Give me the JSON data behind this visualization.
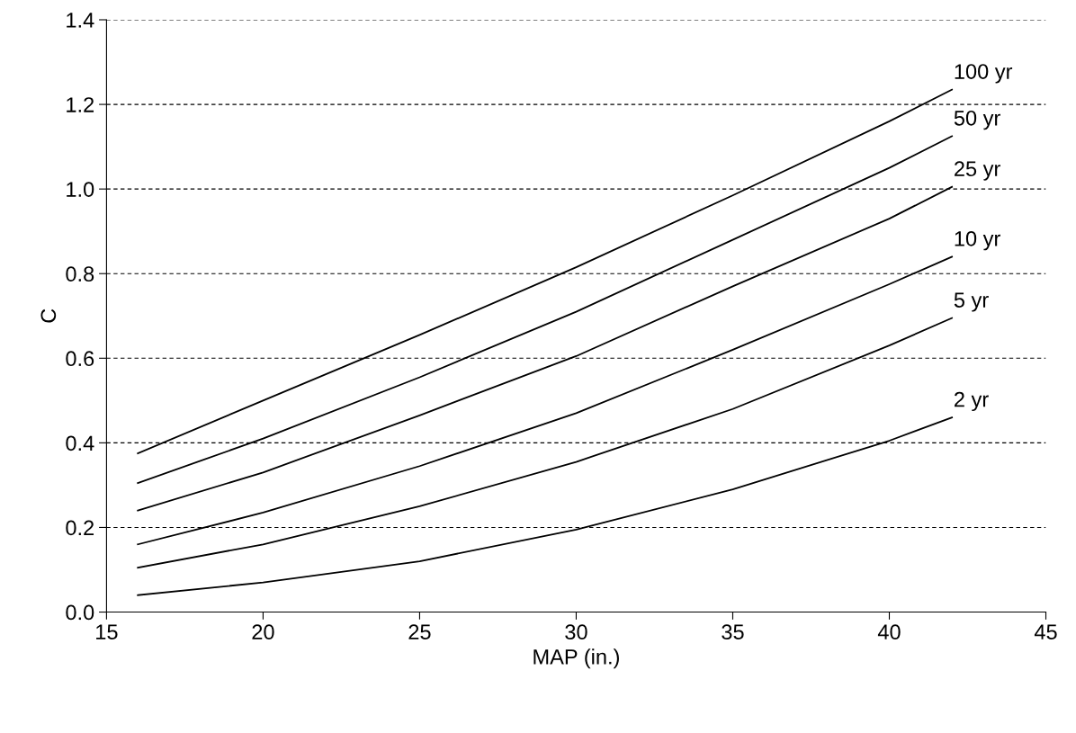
{
  "chart_data": {
    "type": "line",
    "xlabel": "MAP (in.)",
    "ylabel": "C",
    "x": [
      16,
      20,
      25,
      30,
      35,
      40,
      42
    ],
    "series": [
      {
        "name": "100 yr",
        "color": "#000000",
        "values": [
          0.375,
          0.5,
          0.655,
          0.815,
          0.985,
          1.16,
          1.235
        ]
      },
      {
        "name": "50 yr",
        "color": "#000000",
        "values": [
          0.305,
          0.41,
          0.555,
          0.71,
          0.88,
          1.05,
          1.125
        ]
      },
      {
        "name": "25 yr",
        "color": "#000000",
        "values": [
          0.24,
          0.33,
          0.465,
          0.605,
          0.77,
          0.93,
          1.005
        ]
      },
      {
        "name": "10 yr",
        "color": "#000000",
        "values": [
          0.16,
          0.235,
          0.345,
          0.47,
          0.62,
          0.775,
          0.84
        ]
      },
      {
        "name": "5 yr",
        "color": "#000000",
        "values": [
          0.105,
          0.16,
          0.25,
          0.355,
          0.48,
          0.63,
          0.695
        ]
      },
      {
        "name": "2 yr",
        "color": "#000000",
        "values": [
          0.04,
          0.07,
          0.12,
          0.195,
          0.29,
          0.405,
          0.46
        ]
      }
    ],
    "xlim": [
      15,
      45
    ],
    "xticks": [
      15,
      20,
      25,
      30,
      35,
      40,
      45
    ],
    "ylim": [
      0,
      1.4
    ],
    "yticks": [
      {
        "value": 0,
        "label": "0.0"
      },
      {
        "value": 0.2,
        "label": "0.2"
      },
      {
        "value": 0.4,
        "label": "0.4"
      },
      {
        "value": 0.6,
        "label": "0.6"
      },
      {
        "value": 0.8,
        "label": "0.8"
      },
      {
        "value": 1.0,
        "label": "1.0"
      },
      {
        "value": 1.2,
        "label": "1.2"
      },
      {
        "value": 1.4,
        "label": "1.4"
      }
    ],
    "grid": "y",
    "line_style": "solid"
  }
}
